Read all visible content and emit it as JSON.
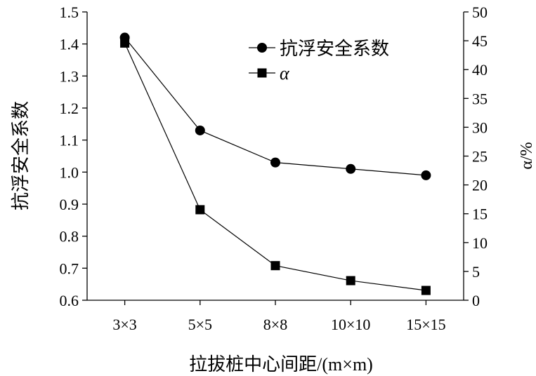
{
  "chart_data": {
    "type": "line",
    "categories": [
      "3×3",
      "5×5",
      "8×8",
      "10×10",
      "15×15"
    ],
    "xlabel": "拉拔桩中心间距/(m×m)",
    "ylabel": "抗浮安全系数",
    "y2label": "α/%",
    "ylim": [
      0.6,
      1.5
    ],
    "y2lim": [
      0,
      50
    ],
    "yticks": [
      "0.6",
      "0.7",
      "0.8",
      "0.9",
      "1.0",
      "1.1",
      "1.2",
      "1.3",
      "1.4",
      "1.5"
    ],
    "y2ticks": [
      "0",
      "5",
      "10",
      "15",
      "20",
      "25",
      "30",
      "35",
      "40",
      "45",
      "50"
    ],
    "grid": false,
    "legend_position": "top-right",
    "series": [
      {
        "name": "抗浮安全系数",
        "axis": "left",
        "marker": "circle",
        "values": [
          1.42,
          1.13,
          1.03,
          1.01,
          0.99
        ]
      },
      {
        "name": "α",
        "axis": "right",
        "marker": "square",
        "values": [
          44.6,
          15.7,
          6.0,
          3.4,
          1.7
        ]
      }
    ],
    "colors": {
      "line": "#000000",
      "marker": "#000000",
      "background": "#ffffff"
    }
  }
}
